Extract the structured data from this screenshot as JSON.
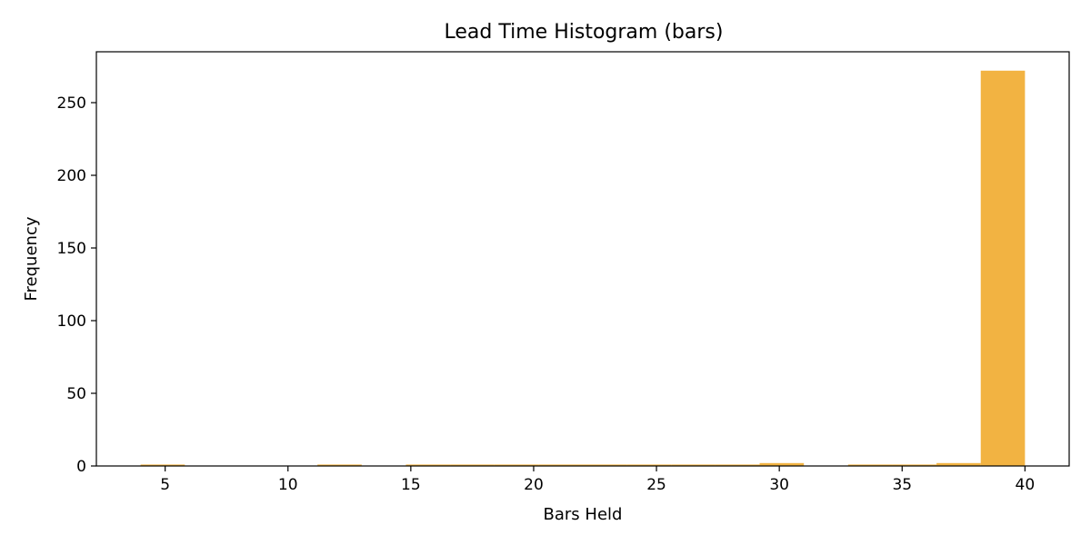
{
  "chart_data": {
    "type": "bar",
    "title": "Lead Time Histogram (bars)",
    "xlabel": "Bars Held",
    "ylabel": "Frequency",
    "xlim": [
      2.2,
      41.8
    ],
    "ylim": [
      0,
      285
    ],
    "xticks": [
      5,
      10,
      15,
      20,
      25,
      30,
      35,
      40
    ],
    "yticks": [
      0,
      50,
      100,
      150,
      200,
      250
    ],
    "bar_color": "#f2b342",
    "grid": false,
    "bins": [
      {
        "x0": 4.0,
        "x1": 5.8,
        "count": 1
      },
      {
        "x0": 5.8,
        "x1": 7.6,
        "count": 0
      },
      {
        "x0": 7.6,
        "x1": 9.4,
        "count": 0
      },
      {
        "x0": 9.4,
        "x1": 11.2,
        "count": 0
      },
      {
        "x0": 11.2,
        "x1": 13.0,
        "count": 1
      },
      {
        "x0": 13.0,
        "x1": 14.8,
        "count": 0
      },
      {
        "x0": 14.8,
        "x1": 16.6,
        "count": 1
      },
      {
        "x0": 16.6,
        "x1": 18.4,
        "count": 1
      },
      {
        "x0": 18.4,
        "x1": 20.2,
        "count": 1
      },
      {
        "x0": 20.2,
        "x1": 22.0,
        "count": 1
      },
      {
        "x0": 22.0,
        "x1": 23.8,
        "count": 1
      },
      {
        "x0": 23.8,
        "x1": 25.6,
        "count": 1
      },
      {
        "x0": 25.6,
        "x1": 27.4,
        "count": 1
      },
      {
        "x0": 27.4,
        "x1": 29.2,
        "count": 1
      },
      {
        "x0": 29.2,
        "x1": 31.0,
        "count": 2
      },
      {
        "x0": 31.0,
        "x1": 32.8,
        "count": 0
      },
      {
        "x0": 32.8,
        "x1": 34.6,
        "count": 1
      },
      {
        "x0": 34.6,
        "x1": 36.4,
        "count": 1
      },
      {
        "x0": 36.4,
        "x1": 38.2,
        "count": 2
      },
      {
        "x0": 38.2,
        "x1": 40.0,
        "count": 272
      }
    ]
  }
}
